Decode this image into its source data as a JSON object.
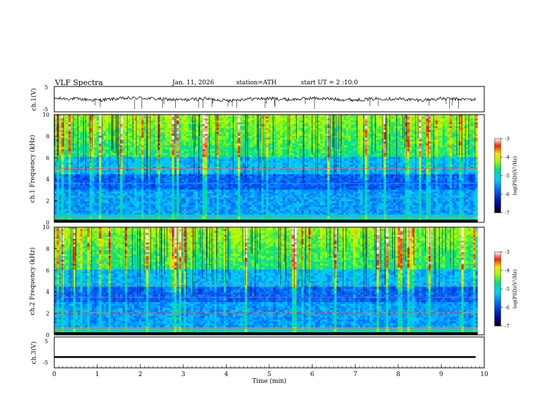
{
  "header": {
    "title": "VLF Spectra",
    "date": "Jan. 11, 2026",
    "station": "station=ATH",
    "start_time": "start UT = 2 :10:0"
  },
  "colors": {
    "spectrogram_low": "#0000cc",
    "spectrogram_mid": "#00e0a0",
    "spectrogram_high": "#ff2000",
    "trace": "#000000"
  },
  "chart_data": [
    {
      "type": "line",
      "panel": "ch1-waveform",
      "ylabel": "ch.1(V)",
      "ylim": [
        -5,
        5
      ],
      "yticks": [
        "5",
        "-5"
      ],
      "x": [
        0,
        0.5,
        1,
        1.5,
        2,
        2.5,
        3,
        3.5,
        4,
        4.5,
        5,
        5.5,
        6,
        6.5,
        7,
        7.5,
        8,
        8.5,
        9,
        9.5,
        9.8
      ],
      "values": [
        0.3,
        0.1,
        -0.4,
        0.2,
        0.5,
        0.0,
        -0.3,
        0.2,
        -0.5,
        0.1,
        0.3,
        -0.2,
        0.4,
        0.0,
        -0.3,
        0.2,
        0.1,
        -0.4,
        0.2,
        0.0,
        -0.2
      ],
      "xlim": [
        0,
        10
      ]
    },
    {
      "type": "heatmap",
      "panel": "ch1-spectrogram",
      "ylabel": "ch.1 Frequency (kHz)",
      "ylim": [
        0,
        10
      ],
      "yticks": [
        "0",
        "2",
        "4",
        "6",
        "8",
        "10"
      ],
      "xlim": [
        0,
        9.85
      ],
      "horizontal_lines_khz": [
        0.6,
        1.2,
        2.3,
        3.6,
        5.0
      ],
      "colorbar": {
        "label": "log(PSD)(V²/Hz)",
        "ticks": [
          "-3",
          "-4",
          "-5",
          "-6",
          "-7"
        ]
      }
    },
    {
      "type": "heatmap",
      "panel": "ch2-spectrogram",
      "ylabel": "ch.2 Frequency (kHz)",
      "ylim": [
        0,
        10
      ],
      "yticks": [
        "0",
        "2",
        "4",
        "6",
        "8",
        "10"
      ],
      "xlim": [
        0,
        9.85
      ],
      "horizontal_lines_khz": [
        0.6,
        1.8,
        2.1,
        3.5,
        4.6
      ],
      "colorbar": {
        "label": "log(PSD)(V²/Hz)",
        "ticks": [
          "-3",
          "-4",
          "-5",
          "-6",
          "-7"
        ]
      }
    },
    {
      "type": "line",
      "panel": "ch3-waveform",
      "ylabel": "ch.3(V)",
      "ylim": [
        -5,
        5
      ],
      "yticks": [
        "5",
        "-5"
      ],
      "x": [
        0,
        9.8
      ],
      "values": [
        -1.5,
        -1.5
      ],
      "xlabel": "Time (min)",
      "xticks": [
        "0",
        "1",
        "2",
        "3",
        "4",
        "5",
        "6",
        "7",
        "8",
        "9",
        "10"
      ],
      "xlim": [
        0,
        10
      ]
    }
  ]
}
